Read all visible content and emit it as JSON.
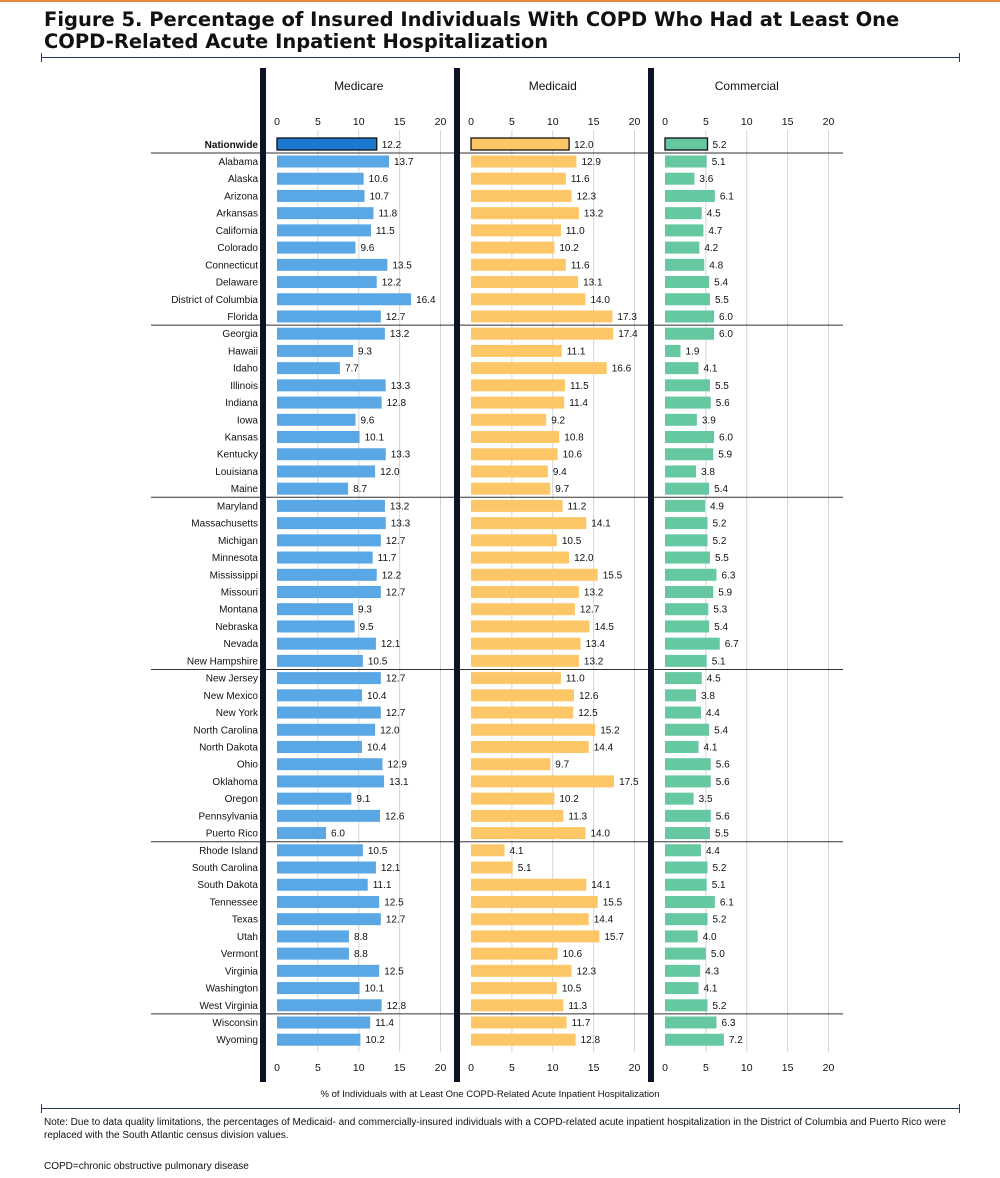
{
  "title": "Figure 5. Percentage of Insured Individuals With COPD Who Had at Least One COPD-Related Acute Inpatient Hospitalization",
  "note": "Note: Due to data quality limitations, the percentages of Medicaid- and commercially-insured individuals with a COPD-related acute inpatient hospitalization in the District of Columbia and Puerto Rico were replaced with the South Atlantic census division values.",
  "abbrev": "COPD=chronic obstructive pulmonary disease",
  "colors": {
    "medicare": "#5aa7e6",
    "medicare_nationwide": "#1d78d0",
    "medicaid": "#fdc767",
    "medicaid_nationwide": "#fdc767",
    "commercial": "#65c8a0",
    "commercial_nationwide": "#65c8a0"
  },
  "chart_data": {
    "type": "bar",
    "orientation": "horizontal",
    "xlabel": "% of Individuals with at Least One COPD-Related Acute Inpatient Hospitalization",
    "xlim": [
      0,
      20
    ],
    "xticks": [
      0,
      5,
      10,
      15,
      20
    ],
    "grid": true,
    "nationwide_label": "Nationwide",
    "categories": [
      "Alabama",
      "Alaska",
      "Arizona",
      "Arkansas",
      "California",
      "Colorado",
      "Connecticut",
      "Delaware",
      "District of Columbia",
      "Florida",
      "Georgia",
      "Hawaii",
      "Idaho",
      "Illinois",
      "Indiana",
      "Iowa",
      "Kansas",
      "Kentucky",
      "Louisiana",
      "Maine",
      "Maryland",
      "Massachusetts",
      "Michigan",
      "Minnesota",
      "Mississippi",
      "Missouri",
      "Montana",
      "Nebraska",
      "Nevada",
      "New Hampshire",
      "New Jersey",
      "New Mexico",
      "New York",
      "North Carolina",
      "North Dakota",
      "Ohio",
      "Oklahoma",
      "Oregon",
      "Pennsylvania",
      "Puerto Rico",
      "Rhode Island",
      "South Carolina",
      "South Dakota",
      "Tennessee",
      "Texas",
      "Utah",
      "Vermont",
      "Virginia",
      "Washington",
      "West Virginia",
      "Wisconsin",
      "Wyoming"
    ],
    "series": [
      {
        "name": "Medicare",
        "nationwide": 12.2,
        "values": [
          13.7,
          10.6,
          10.7,
          11.8,
          11.5,
          9.6,
          13.5,
          12.2,
          16.4,
          12.7,
          13.2,
          9.3,
          7.7,
          13.3,
          12.8,
          9.6,
          10.1,
          13.3,
          12.0,
          8.7,
          13.2,
          13.3,
          12.7,
          11.7,
          12.2,
          12.7,
          9.3,
          9.5,
          12.1,
          10.5,
          12.7,
          10.4,
          12.7,
          12.0,
          10.4,
          12.9,
          13.1,
          9.1,
          12.6,
          6.0,
          10.5,
          12.1,
          11.1,
          12.5,
          12.7,
          8.8,
          8.8,
          12.5,
          10.1,
          12.8,
          11.4,
          10.2
        ]
      },
      {
        "name": "Medicaid",
        "nationwide": 12.0,
        "values": [
          12.9,
          11.6,
          12.3,
          13.2,
          11.0,
          10.2,
          11.6,
          13.1,
          14.0,
          17.3,
          17.4,
          11.1,
          16.6,
          11.5,
          11.4,
          9.2,
          10.8,
          10.6,
          9.4,
          9.7,
          11.2,
          14.1,
          10.5,
          12.0,
          15.5,
          13.2,
          12.7,
          14.5,
          13.4,
          13.2,
          11.0,
          12.6,
          12.5,
          15.2,
          14.4,
          9.7,
          17.5,
          10.2,
          11.3,
          14.0,
          4.1,
          5.1,
          14.1,
          15.5,
          14.4,
          15.7,
          10.6,
          12.3,
          10.5,
          11.3,
          11.7,
          12.8
        ]
      },
      {
        "name": "Commercial",
        "nationwide": 5.2,
        "values": [
          5.1,
          3.6,
          6.1,
          4.5,
          4.7,
          4.2,
          4.8,
          5.4,
          5.5,
          6.0,
          6.0,
          1.9,
          4.1,
          5.5,
          5.6,
          3.9,
          6.0,
          5.9,
          3.8,
          5.4,
          4.9,
          5.2,
          5.2,
          5.5,
          6.3,
          5.9,
          5.3,
          5.4,
          6.7,
          5.1,
          4.5,
          3.8,
          4.4,
          5.4,
          4.1,
          5.6,
          5.6,
          3.5,
          5.6,
          5.5,
          4.4,
          5.2,
          5.1,
          6.1,
          5.2,
          4.0,
          5.0,
          4.3,
          4.1,
          5.2,
          6.3,
          7.2
        ]
      }
    ]
  }
}
